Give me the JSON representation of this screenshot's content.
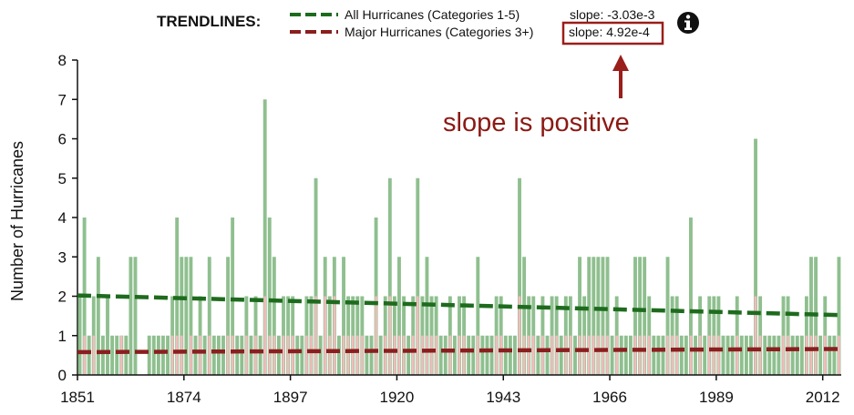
{
  "chart_data": {
    "type": "bar",
    "title": "",
    "xlabel": "",
    "ylabel": "Number of Hurricanes",
    "ylim": [
      0,
      8
    ],
    "yticks": [
      "0",
      "1",
      "2",
      "3",
      "4",
      "5",
      "6",
      "7",
      "8"
    ],
    "x_start": 1851,
    "x_end": 2015,
    "xticks": [
      "1851",
      "1874",
      "1897",
      "1920",
      "1943",
      "1966",
      "1989",
      "2012"
    ],
    "series": [
      {
        "name": "All Hurricanes (Categories 1-5)",
        "color": "#8fbf8f",
        "values": [
          2,
          4,
          1,
          2,
          3,
          1,
          2,
          1,
          1,
          1,
          1,
          3,
          3,
          0,
          0,
          1,
          1,
          1,
          1,
          1,
          2,
          4,
          3,
          3,
          3,
          1,
          2,
          1,
          3,
          1,
          1,
          1,
          3,
          4,
          1,
          1,
          2,
          1,
          2,
          1,
          7,
          4,
          3,
          1,
          2,
          2,
          2,
          1,
          1,
          2,
          2,
          5,
          1,
          3,
          2,
          3,
          1,
          3,
          2,
          2,
          2,
          2,
          1,
          1,
          4,
          1,
          2,
          5,
          2,
          3,
          2,
          1,
          2,
          5,
          2,
          3,
          2,
          2,
          1,
          1,
          2,
          1,
          2,
          2,
          1,
          1,
          3,
          1,
          1,
          1,
          2,
          2,
          1,
          1,
          1,
          5,
          3,
          2,
          2,
          1,
          2,
          1,
          2,
          2,
          1,
          2,
          2,
          1,
          3,
          2,
          3,
          3,
          3,
          3,
          3,
          1,
          2,
          1,
          1,
          1,
          3,
          3,
          3,
          2,
          1,
          1,
          1,
          3,
          2,
          2,
          1,
          1,
          4,
          1,
          2,
          1,
          2,
          2,
          2,
          1,
          1,
          1,
          2,
          1,
          1,
          1,
          6,
          2,
          1,
          1,
          1,
          1,
          2,
          2,
          1,
          1,
          1,
          2,
          3,
          3,
          1,
          2,
          1,
          1,
          3
        ]
      },
      {
        "name": "Major Hurricanes (Categories 3+)",
        "color": "#f2bcbc",
        "values": [
          0,
          1,
          0,
          1,
          0,
          0,
          0,
          0,
          0,
          1,
          0,
          0,
          0,
          0,
          0,
          0,
          0,
          0,
          0,
          0,
          1,
          1,
          1,
          0,
          1,
          0,
          1,
          0,
          1,
          0,
          0,
          0,
          1,
          1,
          0,
          0,
          1,
          0,
          1,
          0,
          2,
          1,
          1,
          0,
          1,
          1,
          1,
          0,
          0,
          1,
          1,
          2,
          0,
          2,
          1,
          2,
          0,
          1,
          1,
          1,
          1,
          1,
          0,
          0,
          2,
          0,
          1,
          2,
          1,
          1,
          1,
          0,
          1,
          2,
          1,
          1,
          1,
          1,
          0,
          0,
          1,
          0,
          1,
          1,
          0,
          0,
          1,
          0,
          0,
          0,
          1,
          1,
          0,
          0,
          0,
          2,
          1,
          1,
          1,
          0,
          1,
          0,
          1,
          1,
          0,
          1,
          1,
          0,
          1,
          1,
          1,
          1,
          1,
          1,
          1,
          0,
          1,
          0,
          0,
          0,
          1,
          1,
          1,
          1,
          0,
          0,
          0,
          1,
          1,
          1,
          0,
          0,
          1,
          0,
          1,
          0,
          1,
          1,
          1,
          0,
          0,
          0,
          1,
          0,
          0,
          0,
          2,
          1,
          0,
          0,
          0,
          0,
          1,
          1,
          0,
          0,
          0,
          1,
          1,
          1,
          0,
          1,
          0,
          0,
          1
        ]
      }
    ],
    "trendlines": [
      {
        "name": "All Hurricanes (Categories 1-5)",
        "color": "#1e6b1e",
        "start": 2.02,
        "end": 1.52,
        "slope_label": "slope: -3.03e-3"
      },
      {
        "name": "Major Hurricanes (Categories 3+)",
        "color": "#8b1e1e",
        "start": 0.58,
        "end": 0.66,
        "slope_label": "slope: 4.92e-4"
      }
    ]
  },
  "legend": {
    "title": "TRENDLINES:",
    "info_icon": "info-icon"
  },
  "annotation": {
    "text": "slope is positive",
    "color": "#8b1a14"
  }
}
